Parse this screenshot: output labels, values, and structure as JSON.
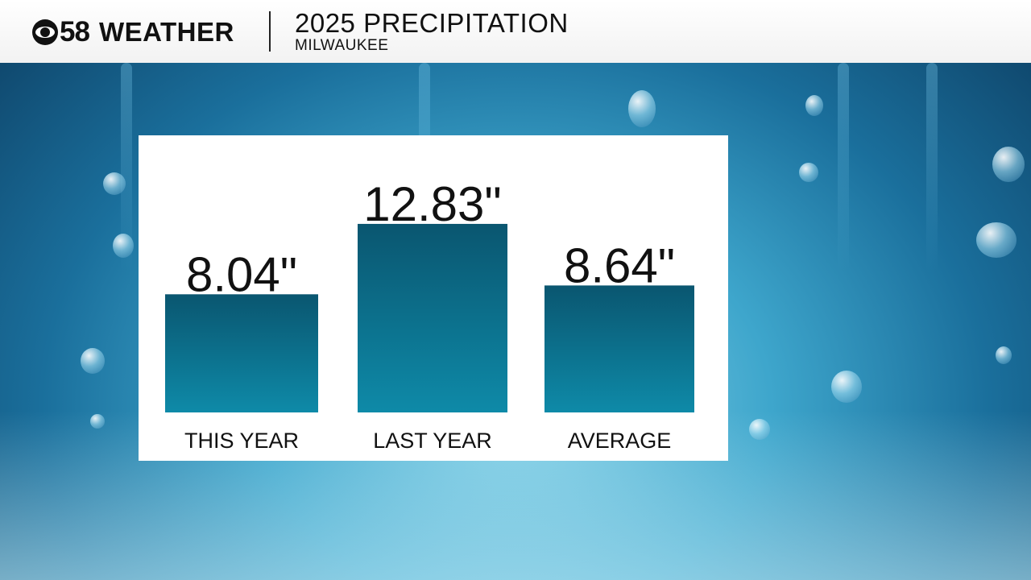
{
  "header": {
    "logo_number": "58",
    "logo_word": "WEATHER",
    "title": "2025 PRECIPITATION",
    "subtitle": "MILWAUKEE"
  },
  "chart_data": {
    "type": "bar",
    "title": "2025 PRECIPITATION",
    "subtitle": "MILWAUKEE",
    "categories": [
      "THIS YEAR",
      "LAST YEAR",
      "AVERAGE"
    ],
    "values": [
      8.04,
      12.83,
      8.64
    ],
    "value_labels": [
      "8.04\"",
      "12.83\"",
      "8.64\""
    ],
    "unit": "inches",
    "ylim": [
      0,
      14.8
    ],
    "grid": false,
    "legend": "none",
    "colors": {
      "bar_top": "#0a5670",
      "bar_bottom": "#0e8aa8",
      "label": "#111111"
    }
  }
}
